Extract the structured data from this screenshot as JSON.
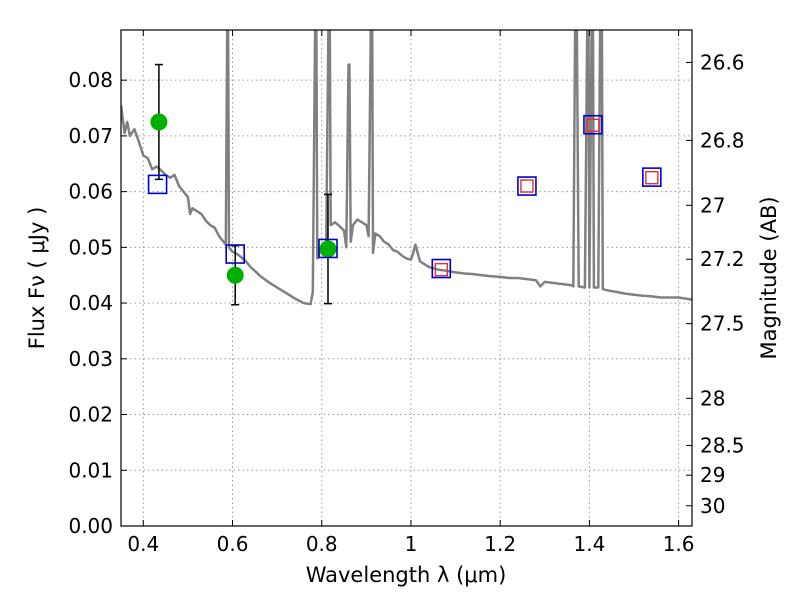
{
  "chart_data": {
    "type": "scatter",
    "xlabel": "Wavelength  λ (μm)",
    "ylabel": "Flux  Fν  ( μJy )",
    "y2label": "Magnitude (AB)",
    "xlim": [
      0.35,
      1.63
    ],
    "ylim": [
      0.0,
      0.089
    ],
    "grid": true,
    "x_ticks": [
      0.4,
      0.6,
      0.8,
      1.0,
      1.2,
      1.4,
      1.6
    ],
    "x_tick_labels": [
      "0.4",
      "0.6",
      "0.8",
      "1",
      "1.2",
      "1.4",
      "1.6"
    ],
    "y_ticks": [
      0.0,
      0.01,
      0.02,
      0.03,
      0.04,
      0.05,
      0.06,
      0.07,
      0.08
    ],
    "y_tick_labels": [
      "0.00",
      "0.01",
      "0.02",
      "0.03",
      "0.04",
      "0.05",
      "0.06",
      "0.07",
      "0.08"
    ],
    "y2_ticks": [
      26.6,
      26.8,
      27.0,
      27.2,
      27.5,
      28.0,
      28.5,
      29.0,
      30.0
    ],
    "y2_tick_labels": [
      "26.6",
      "26.8",
      "27",
      "27.2",
      "27.5",
      "28",
      "28.5",
      "29",
      "30"
    ],
    "colors": {
      "model": "#808080",
      "observed": "#00b000",
      "model_photometry": "#0000cc",
      "synthetic": "#e03030",
      "errorbar": "#000000",
      "grid": "#9a9a9a"
    },
    "series": [
      {
        "kind": "line",
        "points": [
          [
            0.35,
            0.0755
          ],
          [
            0.358,
            0.0705
          ],
          [
            0.364,
            0.0725
          ],
          [
            0.37,
            0.07
          ],
          [
            0.38,
            0.0712
          ],
          [
            0.39,
            0.069
          ],
          [
            0.4,
            0.0665
          ],
          [
            0.41,
            0.066
          ],
          [
            0.42,
            0.064
          ],
          [
            0.43,
            0.0645
          ],
          [
            0.44,
            0.0638
          ],
          [
            0.45,
            0.063
          ],
          [
            0.46,
            0.0625
          ],
          [
            0.47,
            0.063
          ],
          [
            0.48,
            0.061
          ],
          [
            0.49,
            0.06
          ],
          [
            0.5,
            0.059
          ],
          [
            0.505,
            0.056
          ],
          [
            0.51,
            0.057
          ],
          [
            0.52,
            0.0565
          ],
          [
            0.53,
            0.056
          ],
          [
            0.54,
            0.0548
          ],
          [
            0.55,
            0.054
          ],
          [
            0.56,
            0.0535
          ],
          [
            0.57,
            0.052
          ],
          [
            0.58,
            0.051
          ],
          [
            0.585,
            0.0505
          ],
          [
            0.588,
            0.089
          ],
          [
            0.59,
            0.089
          ],
          [
            0.592,
            0.05
          ],
          [
            0.6,
            0.0492
          ],
          [
            0.61,
            0.0488
          ],
          [
            0.62,
            0.0482
          ],
          [
            0.63,
            0.0475
          ],
          [
            0.64,
            0.0465
          ],
          [
            0.65,
            0.0458
          ],
          [
            0.66,
            0.045
          ],
          [
            0.68,
            0.0438
          ],
          [
            0.7,
            0.0428
          ],
          [
            0.72,
            0.0418
          ],
          [
            0.74,
            0.0408
          ],
          [
            0.76,
            0.04
          ],
          [
            0.775,
            0.0398
          ],
          [
            0.78,
            0.042
          ],
          [
            0.785,
            0.089
          ],
          [
            0.788,
            0.089
          ],
          [
            0.79,
            0.048
          ],
          [
            0.8,
            0.05
          ],
          [
            0.81,
            0.0505
          ],
          [
            0.815,
            0.089
          ],
          [
            0.818,
            0.089
          ],
          [
            0.82,
            0.054
          ],
          [
            0.83,
            0.0545
          ],
          [
            0.84,
            0.0538
          ],
          [
            0.85,
            0.053
          ],
          [
            0.855,
            0.05
          ],
          [
            0.86,
            0.0828
          ],
          [
            0.862,
            0.0828
          ],
          [
            0.865,
            0.051
          ],
          [
            0.87,
            0.054
          ],
          [
            0.88,
            0.055
          ],
          [
            0.89,
            0.0545
          ],
          [
            0.9,
            0.054
          ],
          [
            0.905,
            0.052
          ],
          [
            0.91,
            0.089
          ],
          [
            0.913,
            0.089
          ],
          [
            0.915,
            0.049
          ],
          [
            0.92,
            0.0525
          ],
          [
            0.93,
            0.052
          ],
          [
            0.94,
            0.051
          ],
          [
            0.95,
            0.0505
          ],
          [
            0.96,
            0.0495
          ],
          [
            0.97,
            0.0492
          ],
          [
            0.98,
            0.0485
          ],
          [
            0.99,
            0.048
          ],
          [
            1.0,
            0.0478
          ],
          [
            1.005,
            0.049
          ],
          [
            1.01,
            0.0505
          ],
          [
            1.015,
            0.049
          ],
          [
            1.02,
            0.0475
          ],
          [
            1.04,
            0.0465
          ],
          [
            1.06,
            0.046
          ],
          [
            1.08,
            0.0458
          ],
          [
            1.1,
            0.0455
          ],
          [
            1.12,
            0.0453
          ],
          [
            1.14,
            0.0452
          ],
          [
            1.16,
            0.045
          ],
          [
            1.18,
            0.0448
          ],
          [
            1.2,
            0.0447
          ],
          [
            1.22,
            0.0445
          ],
          [
            1.24,
            0.0445
          ],
          [
            1.26,
            0.0443
          ],
          [
            1.28,
            0.0441
          ],
          [
            1.29,
            0.043
          ],
          [
            1.3,
            0.0438
          ],
          [
            1.32,
            0.0436
          ],
          [
            1.34,
            0.0434
          ],
          [
            1.36,
            0.0432
          ],
          [
            1.364,
            0.043
          ],
          [
            1.368,
            0.089
          ],
          [
            1.372,
            0.089
          ],
          [
            1.376,
            0.043
          ],
          [
            1.39,
            0.0428
          ],
          [
            1.395,
            0.089
          ],
          [
            1.398,
            0.089
          ],
          [
            1.4,
            0.0428
          ],
          [
            1.405,
            0.089
          ],
          [
            1.408,
            0.089
          ],
          [
            1.41,
            0.0428
          ],
          [
            1.42,
            0.0428
          ],
          [
            1.424,
            0.089
          ],
          [
            1.428,
            0.089
          ],
          [
            1.43,
            0.0425
          ],
          [
            1.44,
            0.0423
          ],
          [
            1.46,
            0.042
          ],
          [
            1.48,
            0.0417
          ],
          [
            1.5,
            0.0415
          ],
          [
            1.52,
            0.0413
          ],
          [
            1.54,
            0.0412
          ],
          [
            1.56,
            0.041
          ],
          [
            1.58,
            0.041
          ],
          [
            1.6,
            0.041
          ],
          [
            1.63,
            0.0406
          ]
        ]
      },
      {
        "kind": "observed",
        "points": [
          {
            "x": 0.435,
            "y": 0.0725,
            "err": 0.0103
          },
          {
            "x": 0.606,
            "y": 0.045,
            "err": 0.0053
          },
          {
            "x": 0.814,
            "y": 0.0497,
            "err": 0.0098
          }
        ]
      },
      {
        "kind": "model_photometry",
        "points": [
          {
            "x": 0.432,
            "y": 0.0613
          },
          {
            "x": 0.606,
            "y": 0.0488
          },
          {
            "x": 0.814,
            "y": 0.0498
          },
          {
            "x": 1.068,
            "y": 0.0462
          },
          {
            "x": 1.26,
            "y": 0.061
          },
          {
            "x": 1.408,
            "y": 0.072
          },
          {
            "x": 1.54,
            "y": 0.0626
          }
        ]
      },
      {
        "kind": "synthetic",
        "points": [
          {
            "x": 1.068,
            "y": 0.046
          },
          {
            "x": 1.26,
            "y": 0.061
          },
          {
            "x": 1.408,
            "y": 0.0719
          },
          {
            "x": 1.54,
            "y": 0.0625
          }
        ]
      }
    ]
  }
}
